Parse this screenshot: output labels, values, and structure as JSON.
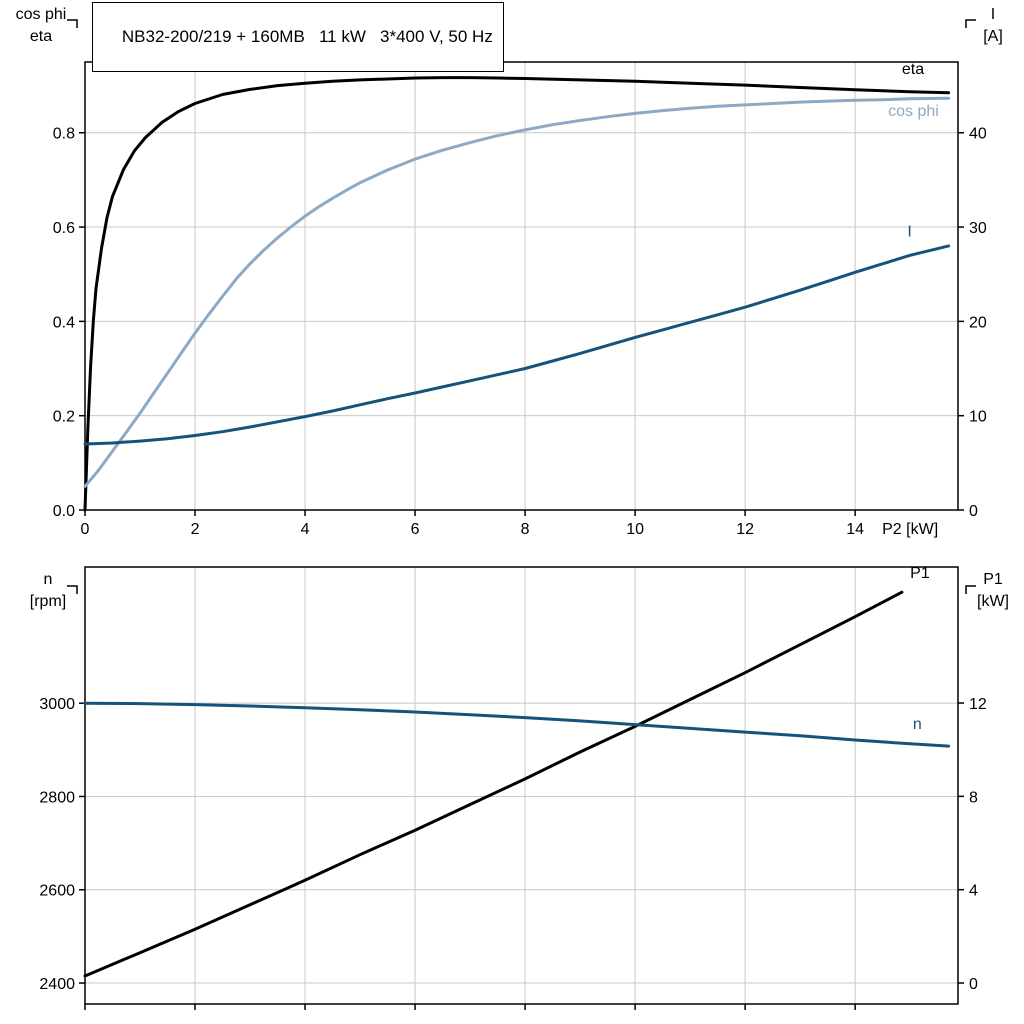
{
  "corner_labels": {
    "top_left": [
      "cos phi",
      "eta"
    ],
    "top_right": [
      "I",
      "[A]"
    ],
    "bottom_left": [
      "n",
      "[rpm]"
    ],
    "bottom_right": [
      "P1",
      "[kW]"
    ]
  },
  "colors": {
    "axis": "#000000",
    "grid": "#c8c8c8",
    "black_curve": "#000000",
    "light_blue": "#8ea9c4",
    "dark_blue": "#17527b",
    "background": "#ffffff"
  },
  "chart_data": [
    {
      "type": "line",
      "title": "NB32-200/219 + 160MB   11 kW   3*400 V, 50 Hz",
      "x": {
        "label": "P2 [kW]",
        "range": [
          0,
          15.87
        ],
        "ticks": [
          {
            "v": 0,
            "label": "0"
          },
          {
            "v": 2,
            "label": "2"
          },
          {
            "v": 4,
            "label": "4"
          },
          {
            "v": 6,
            "label": "6"
          },
          {
            "v": 8,
            "label": "8"
          },
          {
            "v": 10,
            "label": "10"
          },
          {
            "v": 12,
            "label": "12"
          },
          {
            "v": 14,
            "label": "14"
          }
        ]
      },
      "y_left": {
        "label": "cos phi / eta",
        "range": [
          0,
          0.95
        ],
        "ticks": [
          {
            "v": 0,
            "label": "0.0"
          },
          {
            "v": 0.2,
            "label": "0.2"
          },
          {
            "v": 0.4,
            "label": "0.4"
          },
          {
            "v": 0.6,
            "label": "0.6"
          },
          {
            "v": 0.8,
            "label": "0.8"
          }
        ]
      },
      "y_right": {
        "label": "I [A]",
        "range": [
          0,
          47.5
        ],
        "ticks": [
          {
            "v": 0,
            "label": "0"
          },
          {
            "v": 10,
            "label": "10"
          },
          {
            "v": 20,
            "label": "20"
          },
          {
            "v": 30,
            "label": "30"
          },
          {
            "v": 40,
            "label": "40"
          }
        ]
      },
      "series": [
        {
          "id": "eta",
          "name": "eta",
          "axis": "left",
          "color_key": "black_curve",
          "label": {
            "text": "eta",
            "x": 14.85,
            "y": 0.925
          },
          "points": [
            [
              0,
              0
            ],
            [
              0.05,
              0.17
            ],
            [
              0.1,
              0.3
            ],
            [
              0.15,
              0.4
            ],
            [
              0.2,
              0.47
            ],
            [
              0.3,
              0.555
            ],
            [
              0.4,
              0.62
            ],
            [
              0.5,
              0.665
            ],
            [
              0.7,
              0.722
            ],
            [
              0.9,
              0.762
            ],
            [
              1.1,
              0.79
            ],
            [
              1.4,
              0.822
            ],
            [
              1.7,
              0.845
            ],
            [
              2,
              0.862
            ],
            [
              2.5,
              0.881
            ],
            [
              3,
              0.892
            ],
            [
              3.5,
              0.9
            ],
            [
              4,
              0.905
            ],
            [
              4.5,
              0.909
            ],
            [
              5,
              0.912
            ],
            [
              5.5,
              0.914
            ],
            [
              6,
              0.916
            ],
            [
              6.5,
              0.917
            ],
            [
              7,
              0.917
            ],
            [
              7.5,
              0.916
            ],
            [
              8,
              0.915
            ],
            [
              9,
              0.912
            ],
            [
              10,
              0.909
            ],
            [
              11,
              0.905
            ],
            [
              12,
              0.901
            ],
            [
              13,
              0.896
            ],
            [
              14,
              0.891
            ],
            [
              15,
              0.887
            ],
            [
              15.7,
              0.885
            ]
          ]
        },
        {
          "id": "cos-phi",
          "name": "cos phi",
          "axis": "left",
          "color_key": "light_blue",
          "label": {
            "text": "cos phi",
            "x": 14.6,
            "y": 0.835
          },
          "points": [
            [
              0,
              0.05
            ],
            [
              0.25,
              0.085
            ],
            [
              0.5,
              0.125
            ],
            [
              0.75,
              0.165
            ],
            [
              1,
              0.205
            ],
            [
              1.25,
              0.248
            ],
            [
              1.5,
              0.29
            ],
            [
              1.75,
              0.333
            ],
            [
              2,
              0.375
            ],
            [
              2.25,
              0.415
            ],
            [
              2.5,
              0.453
            ],
            [
              2.75,
              0.49
            ],
            [
              3,
              0.522
            ],
            [
              3.25,
              0.551
            ],
            [
              3.5,
              0.577
            ],
            [
              3.75,
              0.601
            ],
            [
              4,
              0.623
            ],
            [
              4.25,
              0.643
            ],
            [
              4.5,
              0.661
            ],
            [
              4.75,
              0.678
            ],
            [
              5,
              0.694
            ],
            [
              5.5,
              0.721
            ],
            [
              6,
              0.744
            ],
            [
              6.5,
              0.763
            ],
            [
              7,
              0.779
            ],
            [
              7.5,
              0.794
            ],
            [
              8,
              0.806
            ],
            [
              8.5,
              0.817
            ],
            [
              9,
              0.826
            ],
            [
              9.5,
              0.834
            ],
            [
              10,
              0.841
            ],
            [
              10.5,
              0.847
            ],
            [
              11,
              0.852
            ],
            [
              11.5,
              0.856
            ],
            [
              12,
              0.859
            ],
            [
              12.5,
              0.862
            ],
            [
              13,
              0.865
            ],
            [
              13.5,
              0.867
            ],
            [
              14,
              0.869
            ],
            [
              14.5,
              0.87
            ],
            [
              15,
              0.872
            ],
            [
              15.7,
              0.873
            ]
          ]
        },
        {
          "id": "current",
          "name": "I",
          "axis": "right",
          "color_key": "dark_blue",
          "label": {
            "text": "I",
            "x": 14.95,
            "y": 29
          },
          "points": [
            [
              0,
              7.0
            ],
            [
              0.5,
              7.1
            ],
            [
              1,
              7.3
            ],
            [
              1.5,
              7.55
            ],
            [
              2,
              7.9
            ],
            [
              2.5,
              8.3
            ],
            [
              3,
              8.8
            ],
            [
              3.5,
              9.35
            ],
            [
              4,
              9.9
            ],
            [
              4.5,
              10.5
            ],
            [
              5,
              11.15
            ],
            [
              5.5,
              11.8
            ],
            [
              6,
              12.4
            ],
            [
              6.5,
              13.05
            ],
            [
              7,
              13.7
            ],
            [
              7.5,
              14.35
            ],
            [
              8,
              15.0
            ],
            [
              8.5,
              15.8
            ],
            [
              9,
              16.6
            ],
            [
              9.5,
              17.45
            ],
            [
              10,
              18.3
            ],
            [
              10.5,
              19.1
            ],
            [
              11,
              19.9
            ],
            [
              11.5,
              20.7
            ],
            [
              12,
              21.5
            ],
            [
              12.5,
              22.4
            ],
            [
              13,
              23.3
            ],
            [
              13.5,
              24.25
            ],
            [
              14,
              25.2
            ],
            [
              14.5,
              26.1
            ],
            [
              15,
              27.0
            ],
            [
              15.7,
              28.0
            ]
          ]
        }
      ]
    },
    {
      "type": "line",
      "title": "",
      "x": {
        "label": "",
        "range": [
          0,
          15.87
        ],
        "ticks": [
          {
            "v": 0,
            "label": ""
          },
          {
            "v": 2,
            "label": ""
          },
          {
            "v": 4,
            "label": ""
          },
          {
            "v": 6,
            "label": ""
          },
          {
            "v": 8,
            "label": ""
          },
          {
            "v": 10,
            "label": ""
          },
          {
            "v": 12,
            "label": ""
          },
          {
            "v": 14,
            "label": ""
          }
        ]
      },
      "y_left": {
        "label": "n [rpm]",
        "range": [
          2355,
          3292
        ],
        "ticks": [
          {
            "v": 2400,
            "label": "2400"
          },
          {
            "v": 2600,
            "label": "2600"
          },
          {
            "v": 2800,
            "label": "2800"
          },
          {
            "v": 3000,
            "label": "3000"
          }
        ]
      },
      "y_right": {
        "label": "P1 [kW]",
        "range": [
          -0.9,
          17.83
        ],
        "ticks": [
          {
            "v": 0,
            "label": "0"
          },
          {
            "v": 4,
            "label": "4"
          },
          {
            "v": 8,
            "label": "8"
          },
          {
            "v": 12,
            "label": "12"
          }
        ]
      },
      "series": [
        {
          "id": "p1",
          "name": "P1",
          "axis": "right",
          "color_key": "black_curve",
          "label": {
            "text": "P1",
            "x": 15.0,
            "y": 17.35
          },
          "points": [
            [
              0,
              0.3
            ],
            [
              1,
              1.3
            ],
            [
              2,
              2.3
            ],
            [
              3,
              3.35
            ],
            [
              4,
              4.4
            ],
            [
              5,
              5.5
            ],
            [
              6,
              6.55
            ],
            [
              7,
              7.65
            ],
            [
              8,
              8.75
            ],
            [
              9,
              9.9
            ],
            [
              10,
              11.0
            ],
            [
              11,
              12.15
            ],
            [
              12,
              13.3
            ],
            [
              13,
              14.5
            ],
            [
              14,
              15.7
            ],
            [
              14.85,
              16.75
            ]
          ]
        },
        {
          "id": "speed",
          "name": "n",
          "axis": "left",
          "color_key": "dark_blue",
          "label": {
            "text": "n",
            "x": 15.05,
            "y": 2945
          },
          "points": [
            [
              0,
              3000
            ],
            [
              1,
              2999
            ],
            [
              2,
              2997
            ],
            [
              3,
              2994
            ],
            [
              4,
              2990
            ],
            [
              5,
              2986
            ],
            [
              6,
              2981
            ],
            [
              7,
              2975
            ],
            [
              8,
              2969
            ],
            [
              9,
              2962
            ],
            [
              10,
              2954
            ],
            [
              11,
              2946
            ],
            [
              12,
              2938
            ],
            [
              13,
              2930
            ],
            [
              14,
              2921
            ],
            [
              15,
              2913
            ],
            [
              15.7,
              2908
            ]
          ]
        }
      ]
    }
  ]
}
